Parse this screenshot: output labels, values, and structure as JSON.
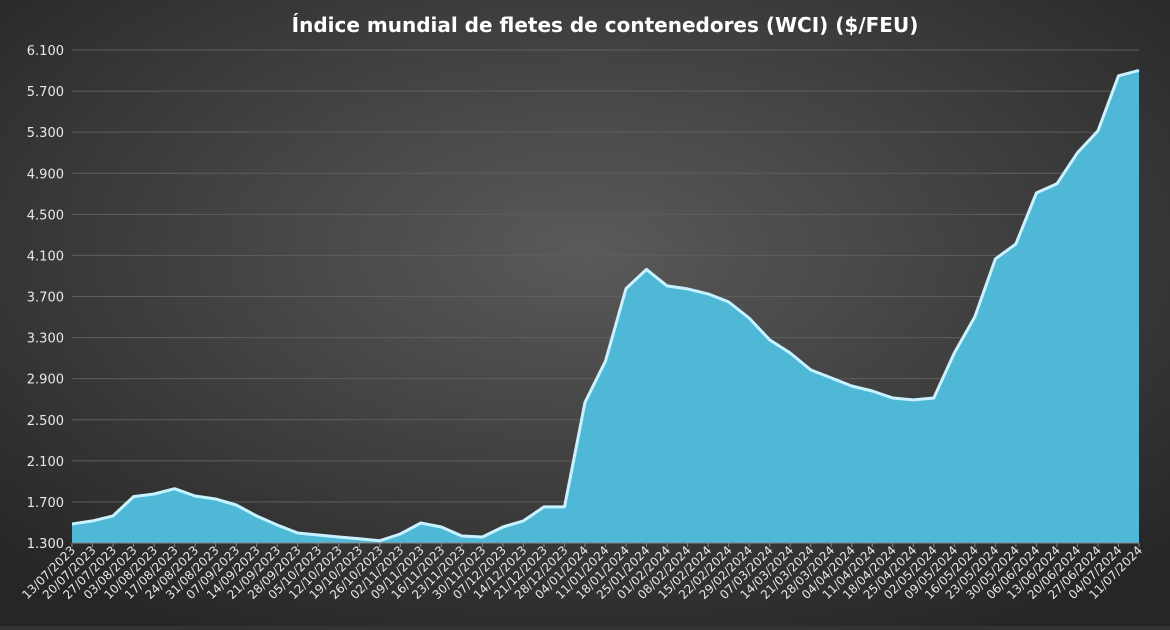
{
  "chart_data": {
    "type": "area",
    "title": "Índice mundial de fletes de contenedores (WCI) ($/FEU)",
    "categories": [
      "13/07/2023",
      "20/07/2023",
      "27/07/2023",
      "03/08/2023",
      "10/08/2023",
      "17/08/2023",
      "24/08/2023",
      "31/08/2023",
      "07/09/2023",
      "14/09/2023",
      "21/09/2023",
      "28/09/2023",
      "05/10/2023",
      "12/10/2023",
      "19/10/2023",
      "26/10/2023",
      "02/11/2023",
      "09/11/2023",
      "16/11/2023",
      "23/11/2023",
      "30/11/2023",
      "07/12/2023",
      "14/12/2023",
      "21/12/2023",
      "28/12/2023",
      "04/01/2024",
      "11/01/2024",
      "18/01/2024",
      "25/01/2024",
      "01/02/2024",
      "08/02/2024",
      "15/02/2024",
      "22/02/2024",
      "29/02/2024",
      "07/03/2024",
      "14/03/2024",
      "21/03/2024",
      "28/03/2024",
      "04/04/2024",
      "11/04/2024",
      "18/04/2024",
      "25/04/2024",
      "02/05/2024",
      "09/05/2024",
      "16/05/2024",
      "23/05/2024",
      "30/05/2024",
      "06/06/2024",
      "13/06/2024",
      "20/06/2024",
      "27/06/2024",
      "04/07/2024",
      "11/07/2024"
    ],
    "values": [
      1485,
      1515,
      1564,
      1752,
      1777,
      1829,
      1758,
      1728,
      1670,
      1563,
      1475,
      1397,
      1378,
      1358,
      1342,
      1322,
      1388,
      1495,
      1456,
      1368,
      1358,
      1456,
      1515,
      1651,
      1651,
      2670,
      3072,
      3777,
      3964,
      3803,
      3774,
      3725,
      3647,
      3491,
      3277,
      3150,
      2985,
      2907,
      2829,
      2780,
      2712,
      2693,
      2712,
      3150,
      3501,
      4066,
      4212,
      4709,
      4797,
      5099,
      5313,
      5849,
      5901
    ],
    "color": "#4fb8d6",
    "ylim": [
      1300,
      6100
    ],
    "yticks": [
      {
        "value": 1300,
        "label": "1.300"
      },
      {
        "value": 1700,
        "label": "1.700"
      },
      {
        "value": 2100,
        "label": "2.100"
      },
      {
        "value": 2500,
        "label": "2.500"
      },
      {
        "value": 2900,
        "label": "2.900"
      },
      {
        "value": 3300,
        "label": "3.300"
      },
      {
        "value": 3700,
        "label": "3.700"
      },
      {
        "value": 4100,
        "label": "4.100"
      },
      {
        "value": 4500,
        "label": "4.500"
      },
      {
        "value": 4900,
        "label": "4.900"
      },
      {
        "value": 5300,
        "label": "5.300"
      },
      {
        "value": 5700,
        "label": "5.700"
      },
      {
        "value": 6100,
        "label": "6.100"
      }
    ],
    "grid": true
  }
}
